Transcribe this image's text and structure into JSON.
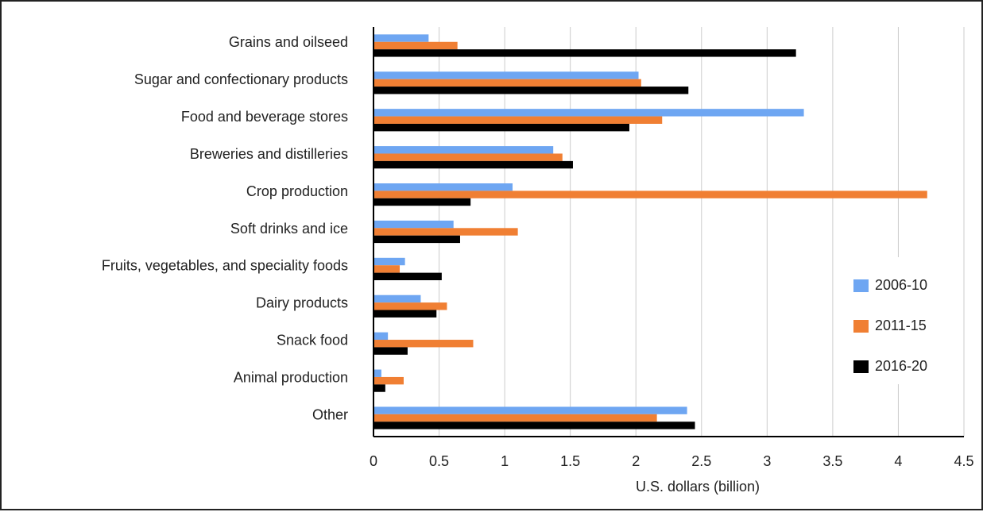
{
  "chart_data": {
    "type": "bar",
    "orientation": "horizontal",
    "categories": [
      "Grains and oilseed",
      "Sugar and confectionary products",
      "Food and beverage stores",
      "Breweries and distilleries",
      "Crop production",
      "Soft drinks and ice",
      "Fruits, vegetables, and speciality foods",
      "Dairy products",
      "Snack food",
      "Animal production",
      "Other"
    ],
    "series": [
      {
        "name": "2006-10",
        "color": "#6ea6f2",
        "values": [
          0.42,
          2.02,
          3.28,
          1.37,
          1.06,
          0.61,
          0.24,
          0.36,
          0.11,
          0.06,
          2.39
        ]
      },
      {
        "name": "2011-15",
        "color": "#f07f33",
        "values": [
          0.64,
          2.04,
          2.2,
          1.44,
          4.22,
          1.1,
          0.2,
          0.56,
          0.76,
          0.23,
          2.16
        ]
      },
      {
        "name": "2016-20",
        "color": "#000000",
        "values": [
          3.22,
          2.4,
          1.95,
          1.52,
          0.74,
          0.66,
          0.52,
          0.48,
          0.26,
          0.09,
          2.45
        ]
      }
    ],
    "xlabel": "U.S. dollars (billion)",
    "ylabel": "",
    "title": "",
    "xlim": [
      0,
      4.5
    ],
    "xticks": [
      "0",
      "0.5",
      "1",
      "1.5",
      "2",
      "2.5",
      "3",
      "3.5",
      "4",
      "4.5"
    ],
    "grid": "vertical",
    "legend_position": "right"
  }
}
